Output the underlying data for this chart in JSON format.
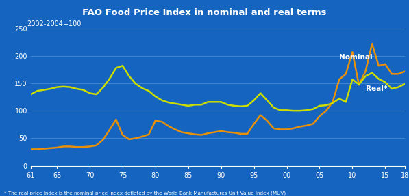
{
  "title": "FAO Food Price Index in nominal and real terms",
  "subtitle": "2002-2004=100",
  "footnote": "* The real price index is the nominal price index deflated by the World Bank Manufactures Unit Value Index (MUV)",
  "title_bg_color": "#1e3a8a",
  "plot_bg_color": "#1565c0",
  "fig_bg_color": "#1565c0",
  "title_text_color": "#ffffff",
  "axis_text_color": "#ffffff",
  "grid_color": "#4488cc",
  "nominal_color": "#e8900a",
  "real_color": "#ccdd00",
  "ylim": [
    0,
    250
  ],
  "yticks": [
    0,
    50,
    100,
    150,
    200,
    250
  ],
  "xtick_positions": [
    61,
    65,
    70,
    75,
    80,
    85,
    90,
    95,
    100,
    105,
    110,
    115,
    118
  ],
  "xticklabels": [
    "61",
    "65",
    "70",
    "75",
    "80",
    "85",
    "90",
    "95",
    "00",
    "05",
    "10",
    "15",
    "18"
  ],
  "nominal_label": "Nominal",
  "real_label": "Real*",
  "nominal_x": [
    61,
    62,
    63,
    64,
    65,
    66,
    67,
    68,
    69,
    70,
    71,
    72,
    73,
    74,
    75,
    76,
    77,
    78,
    79,
    80,
    81,
    82,
    83,
    84,
    85,
    86,
    87,
    88,
    89,
    90,
    91,
    92,
    93,
    94,
    95,
    96,
    97,
    98,
    99,
    100,
    101,
    102,
    103,
    104,
    105,
    106,
    107,
    108,
    109,
    110,
    111,
    112,
    113,
    114,
    115,
    116,
    117,
    118
  ],
  "nominal_y": [
    30,
    30,
    31,
    32,
    33,
    35,
    35,
    34,
    34,
    35,
    37,
    47,
    65,
    84,
    56,
    48,
    50,
    53,
    57,
    82,
    80,
    72,
    66,
    61,
    59,
    57,
    56,
    59,
    61,
    63,
    61,
    60,
    58,
    58,
    76,
    92,
    82,
    68,
    66,
    66,
    68,
    71,
    73,
    76,
    90,
    100,
    116,
    157,
    167,
    207,
    147,
    172,
    222,
    182,
    185,
    167,
    167,
    172
  ],
  "real_x": [
    61,
    62,
    63,
    64,
    65,
    66,
    67,
    68,
    69,
    70,
    71,
    72,
    73,
    74,
    75,
    76,
    77,
    78,
    79,
    80,
    81,
    82,
    83,
    84,
    85,
    86,
    87,
    88,
    89,
    90,
    91,
    92,
    93,
    94,
    95,
    96,
    97,
    98,
    99,
    100,
    101,
    102,
    103,
    104,
    105,
    106,
    107,
    108,
    109,
    110,
    111,
    112,
    113,
    114,
    115,
    116,
    117,
    118
  ],
  "real_y": [
    130,
    136,
    138,
    140,
    143,
    144,
    143,
    140,
    138,
    132,
    130,
    142,
    158,
    178,
    182,
    163,
    149,
    141,
    136,
    126,
    119,
    115,
    113,
    111,
    109,
    111,
    111,
    116,
    116,
    116,
    111,
    109,
    108,
    109,
    119,
    132,
    119,
    106,
    101,
    101,
    100,
    100,
    101,
    103,
    109,
    110,
    114,
    122,
    116,
    157,
    148,
    163,
    169,
    158,
    152,
    140,
    143,
    149
  ]
}
